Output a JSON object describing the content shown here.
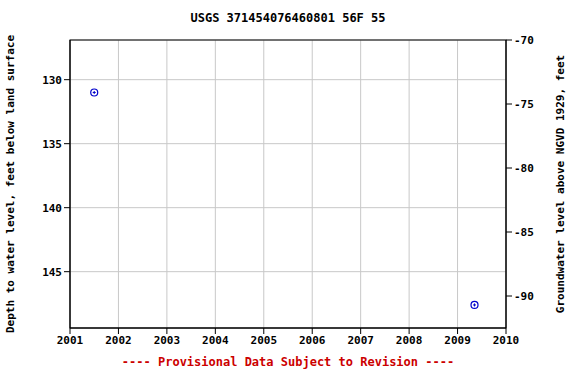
{
  "chart_data": {
    "type": "scatter",
    "title": "USGS 371454076460801 56F 55",
    "y_label": "Depth to water level, feet below land surface",
    "y2_label": "Groundwater level above NGVD 1929, feet",
    "footer": "---- Provisional Data Subject to Revision ----",
    "x": [
      2001.5,
      2009.35
    ],
    "values": [
      131.0,
      147.6
    ],
    "color": "#0000cc",
    "marker": "circle",
    "xlim": [
      2001,
      2010
    ],
    "xticks": [
      2001,
      2002,
      2003,
      2004,
      2005,
      2006,
      2007,
      2008,
      2009,
      2010
    ],
    "ylim": [
      149.4,
      126.9
    ],
    "yticks": [
      130,
      135,
      140,
      145
    ],
    "y2lim": [
      -92.5,
      -70
    ],
    "y2ticks": [
      -90,
      -85,
      -80,
      -75,
      -70
    ],
    "grid": true
  }
}
